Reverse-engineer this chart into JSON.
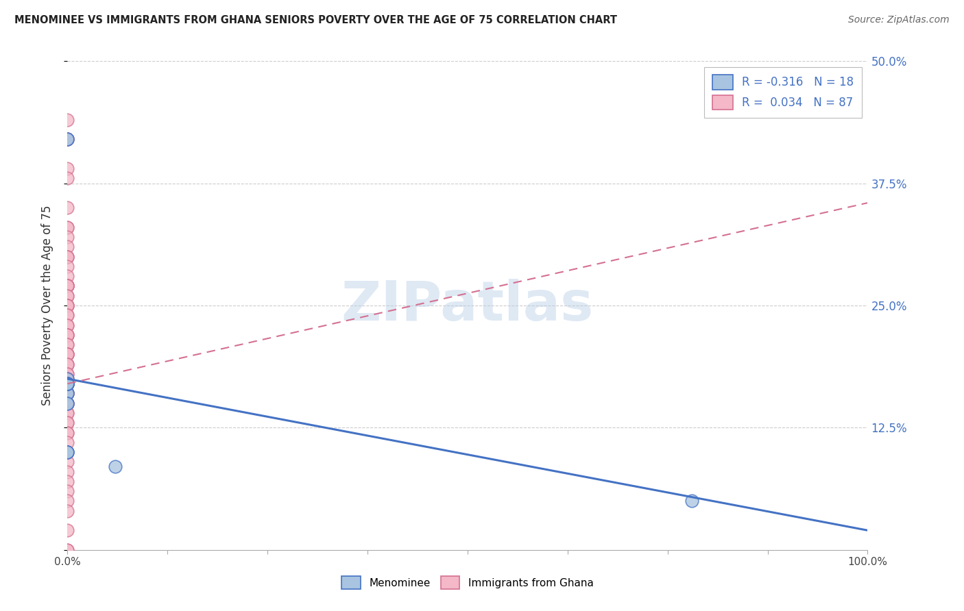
{
  "title": "MENOMINEE VS IMMIGRANTS FROM GHANA SENIORS POVERTY OVER THE AGE OF 75 CORRELATION CHART",
  "source": "Source: ZipAtlas.com",
  "ylabel": "Seniors Poverty Over the Age of 75",
  "xlim": [
    0,
    1.0
  ],
  "ylim": [
    0,
    0.5
  ],
  "xticks": [
    0.0,
    0.125,
    0.25,
    0.375,
    0.5,
    0.625,
    0.75,
    0.875,
    1.0
  ],
  "xticklabels_shown": [
    "0.0%",
    "",
    "",
    "",
    "",
    "",
    "",
    "",
    "100.0%"
  ],
  "yticks": [
    0.0,
    0.125,
    0.25,
    0.375,
    0.5
  ],
  "yticklabels": [
    "",
    "12.5%",
    "25.0%",
    "37.5%",
    "50.0%"
  ],
  "color_menominee_fill": "#a8c4e0",
  "color_menominee_edge": "#4472c4",
  "color_ghana_fill": "#f4b8c8",
  "color_ghana_edge": "#d47090",
  "color_menominee_line": "#4472c4",
  "color_ghana_line": "#d47090",
  "color_grid": "#cccccc",
  "watermark": "ZIPatlas",
  "menominee_x": [
    0.0,
    0.0,
    0.0,
    0.0,
    0.0,
    0.0,
    0.0,
    0.0,
    0.0,
    0.0,
    0.0,
    0.0,
    0.0,
    0.0,
    0.06,
    0.0,
    0.78,
    0.0,
    0.0,
    0.0,
    0.0,
    0.0,
    0.0
  ],
  "menominee_y": [
    0.42,
    0.42,
    0.16,
    0.17,
    0.16,
    0.17,
    0.17,
    0.17,
    0.17,
    0.175,
    0.17,
    0.17,
    0.15,
    0.15,
    0.085,
    0.17,
    0.05,
    0.1,
    0.1,
    0.17,
    0.17,
    0.1,
    0.17
  ],
  "ghana_x": [
    0.0,
    0.0,
    0.0,
    0.0,
    0.0,
    0.0,
    0.0,
    0.0,
    0.0,
    0.0,
    0.0,
    0.0,
    0.0,
    0.0,
    0.0,
    0.0,
    0.0,
    0.0,
    0.0,
    0.0,
    0.0,
    0.0,
    0.0,
    0.0,
    0.0,
    0.0,
    0.0,
    0.0,
    0.0,
    0.0,
    0.0,
    0.0,
    0.0,
    0.0,
    0.0,
    0.0,
    0.0,
    0.0,
    0.0,
    0.0,
    0.0,
    0.0,
    0.0,
    0.0,
    0.0,
    0.0,
    0.0,
    0.0,
    0.0,
    0.0,
    0.0,
    0.0,
    0.0,
    0.0,
    0.0,
    0.0,
    0.0,
    0.0,
    0.0,
    0.0,
    0.0,
    0.0,
    0.0,
    0.0,
    0.0,
    0.0,
    0.0,
    0.0,
    0.0,
    0.0,
    0.0,
    0.0,
    0.0,
    0.0,
    0.0,
    0.0,
    0.0,
    0.0,
    0.0,
    0.0,
    0.0,
    0.0,
    0.0,
    0.0,
    0.0,
    0.0,
    0.0
  ],
  "ghana_y": [
    0.44,
    0.42,
    0.42,
    0.42,
    0.42,
    0.39,
    0.38,
    0.35,
    0.33,
    0.33,
    0.32,
    0.31,
    0.3,
    0.3,
    0.3,
    0.29,
    0.28,
    0.27,
    0.27,
    0.27,
    0.27,
    0.27,
    0.27,
    0.27,
    0.26,
    0.26,
    0.25,
    0.25,
    0.25,
    0.25,
    0.24,
    0.24,
    0.23,
    0.23,
    0.22,
    0.22,
    0.22,
    0.22,
    0.21,
    0.21,
    0.2,
    0.2,
    0.2,
    0.2,
    0.2,
    0.19,
    0.19,
    0.19,
    0.18,
    0.18,
    0.175,
    0.175,
    0.17,
    0.17,
    0.17,
    0.17,
    0.17,
    0.17,
    0.17,
    0.17,
    0.17,
    0.16,
    0.16,
    0.16,
    0.16,
    0.16,
    0.15,
    0.15,
    0.15,
    0.15,
    0.14,
    0.14,
    0.13,
    0.13,
    0.12,
    0.12,
    0.11,
    0.1,
    0.09,
    0.08,
    0.07,
    0.06,
    0.05,
    0.04,
    0.02,
    0.0,
    0.0
  ],
  "men_line_x0": 0.0,
  "men_line_y0": 0.175,
  "men_line_x1": 1.0,
  "men_line_y1": 0.02,
  "ghana_line_x0": 0.0,
  "ghana_line_y0": 0.17,
  "ghana_line_x1": 1.0,
  "ghana_line_y1": 0.355
}
